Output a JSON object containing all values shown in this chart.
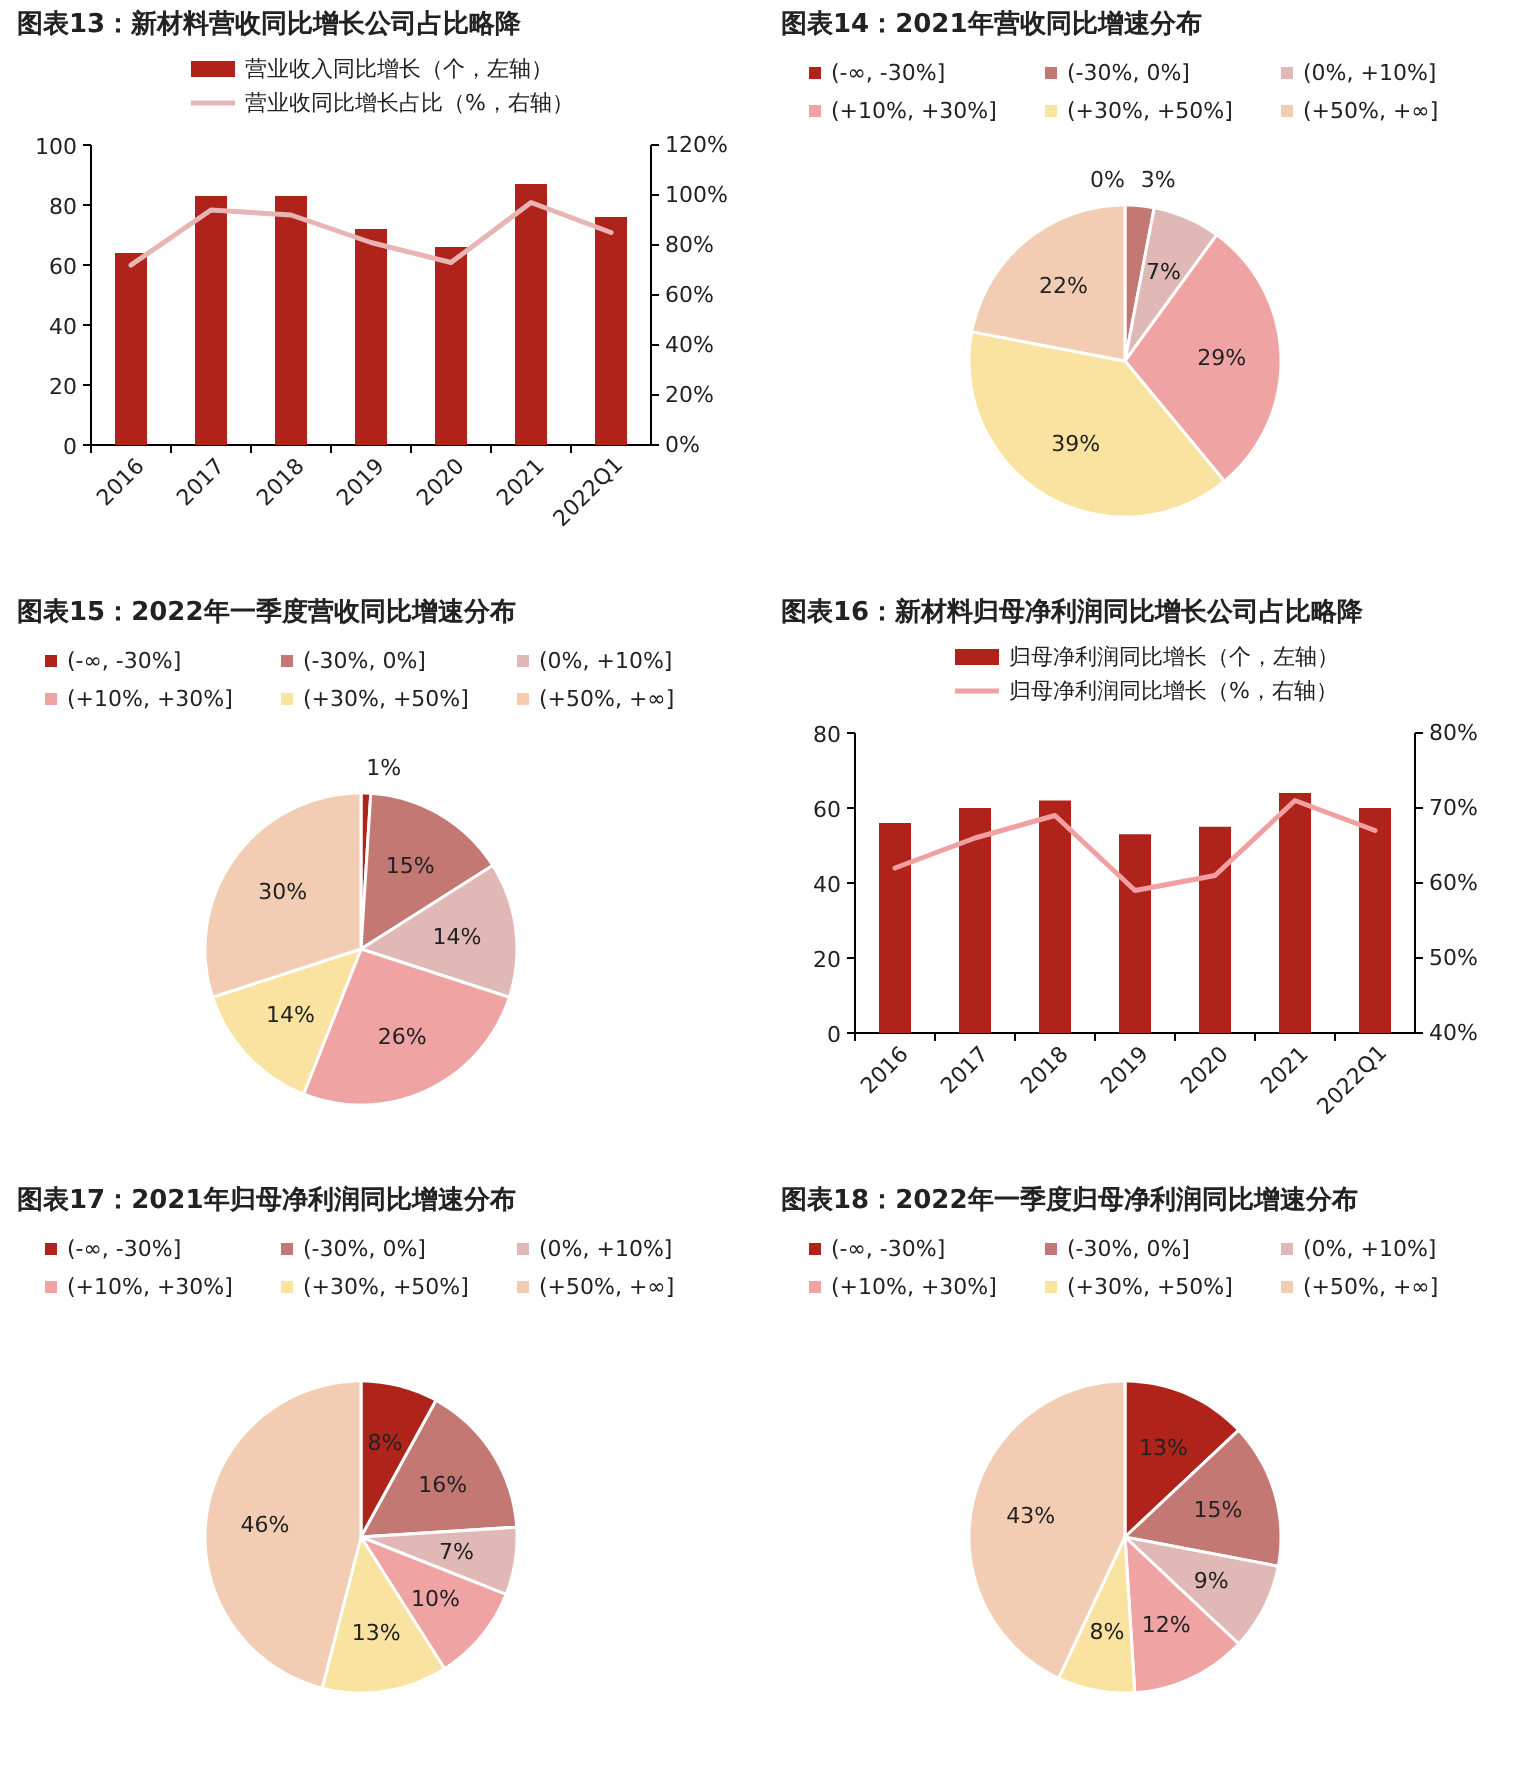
{
  "chart_data": [
    {
      "type": "bar",
      "title": "图表13：新材料营收同比增长公司占比略降",
      "categories": [
        "2016",
        "2017",
        "2018",
        "2019",
        "2020",
        "2021",
        "2022Q1"
      ],
      "series": [
        {
          "name": "营业收入同比增长（个，左轴）",
          "color": "#b0231a",
          "values": [
            64,
            83,
            83,
            72,
            66,
            87,
            76
          ]
        },
        {
          "name": "营业收同比增长占比（%，右轴）",
          "type": "line",
          "axis": "y2",
          "color": "#e8b4b4",
          "values": [
            72,
            94,
            92,
            81,
            73,
            97,
            85
          ]
        }
      ],
      "ylim": [
        0,
        100
      ],
      "yticks": [
        0,
        20,
        40,
        60,
        80,
        100
      ],
      "y2lim": [
        0,
        120
      ],
      "y2ticks": [
        {
          "value": 0,
          "label": "0%"
        },
        {
          "value": 20,
          "label": "20%"
        },
        {
          "value": 40,
          "label": "40%"
        },
        {
          "value": 60,
          "label": "60%"
        },
        {
          "value": 80,
          "label": "80%"
        },
        {
          "value": 100,
          "label": "100%"
        },
        {
          "value": 120,
          "label": "120%"
        }
      ],
      "legend": "top",
      "grid": false
    },
    {
      "type": "pie",
      "title": "图表14：2021年营收同比增速分布",
      "categories": [
        "(-∞, -30%]",
        "(-30%, 0%]",
        "(0%, +10%]",
        "(+10%, +30%]",
        "(+30%, +50%]",
        "(+50%, +∞]"
      ],
      "values": [
        0,
        3,
        7,
        29,
        39,
        22
      ],
      "value_labels": [
        "0%",
        "3%",
        "7%",
        "29%",
        "39%",
        "22%"
      ],
      "colors": [
        "#b0231a",
        "#c47874",
        "#e0b8b6",
        "#f0a3a3",
        "#fae3a0",
        "#f2cdb3"
      ],
      "data_labels": true,
      "legend": "top"
    },
    {
      "type": "pie",
      "title": "图表15：2022年一季度营收同比增速分布",
      "categories": [
        "(-∞, -30%]",
        "(-30%, 0%]",
        "(0%, +10%]",
        "(+10%, +30%]",
        "(+30%, +50%]",
        "(+50%, +∞]"
      ],
      "values": [
        1,
        15,
        14,
        26,
        14,
        30
      ],
      "value_labels": [
        "1%",
        "15%",
        "14%",
        "26%",
        "14%",
        "30%"
      ],
      "colors": [
        "#b0231a",
        "#c47874",
        "#e0b8b6",
        "#f0a3a3",
        "#fae3a0",
        "#f2cdb3"
      ],
      "data_labels": true,
      "legend": "top"
    },
    {
      "type": "bar",
      "title": "图表16：新材料归母净利润同比增长公司占比略降",
      "categories": [
        "2016",
        "2017",
        "2018",
        "2019",
        "2020",
        "2021",
        "2022Q1"
      ],
      "series": [
        {
          "name": "归母净利润同比增长（个，左轴）",
          "color": "#b0231a",
          "values": [
            56,
            60,
            62,
            53,
            55,
            64,
            60
          ]
        },
        {
          "name": "归母净利润同比增长（%，右轴）",
          "type": "line",
          "axis": "y2",
          "color": "#f0a0a0",
          "values": [
            62,
            66,
            69,
            59,
            61,
            71,
            67
          ]
        }
      ],
      "ylim": [
        0,
        80
      ],
      "yticks": [
        0,
        20,
        40,
        60,
        80
      ],
      "y2lim": [
        40,
        80
      ],
      "y2ticks": [
        {
          "value": 40,
          "label": "40%"
        },
        {
          "value": 50,
          "label": "50%"
        },
        {
          "value": 60,
          "label": "60%"
        },
        {
          "value": 70,
          "label": "70%"
        },
        {
          "value": 80,
          "label": "80%"
        }
      ],
      "legend": "top",
      "grid": false
    },
    {
      "type": "pie",
      "title": "图表17：2021年归母净利润同比增速分布",
      "categories": [
        "(-∞, -30%]",
        "(-30%, 0%]",
        "(0%, +10%]",
        "(+10%, +30%]",
        "(+30%, +50%]",
        "(+50%, +∞]"
      ],
      "values": [
        8,
        16,
        7,
        10,
        13,
        46
      ],
      "value_labels": [
        "8%",
        "16%",
        "7%",
        "10%",
        "13%",
        "46%"
      ],
      "colors": [
        "#b0231a",
        "#c47874",
        "#e0b8b6",
        "#f0a3a3",
        "#fae3a0",
        "#f2cdb3"
      ],
      "data_labels": true,
      "legend": "top"
    },
    {
      "type": "pie",
      "title": "图表18：2022年一季度归母净利润同比增速分布",
      "categories": [
        "(-∞, -30%]",
        "(-30%, 0%]",
        "(0%, +10%]",
        "(+10%, +30%]",
        "(+30%, +50%]",
        "(+50%, +∞]"
      ],
      "values": [
        13,
        15,
        9,
        12,
        8,
        43
      ],
      "value_labels": [
        "13%",
        "15%",
        "9%",
        "12%",
        "8%",
        "43%"
      ],
      "colors": [
        "#b0231a",
        "#c47874",
        "#e0b8b6",
        "#f0a3a3",
        "#fae3a0",
        "#f2cdb3"
      ],
      "data_labels": true,
      "legend": "top"
    }
  ]
}
